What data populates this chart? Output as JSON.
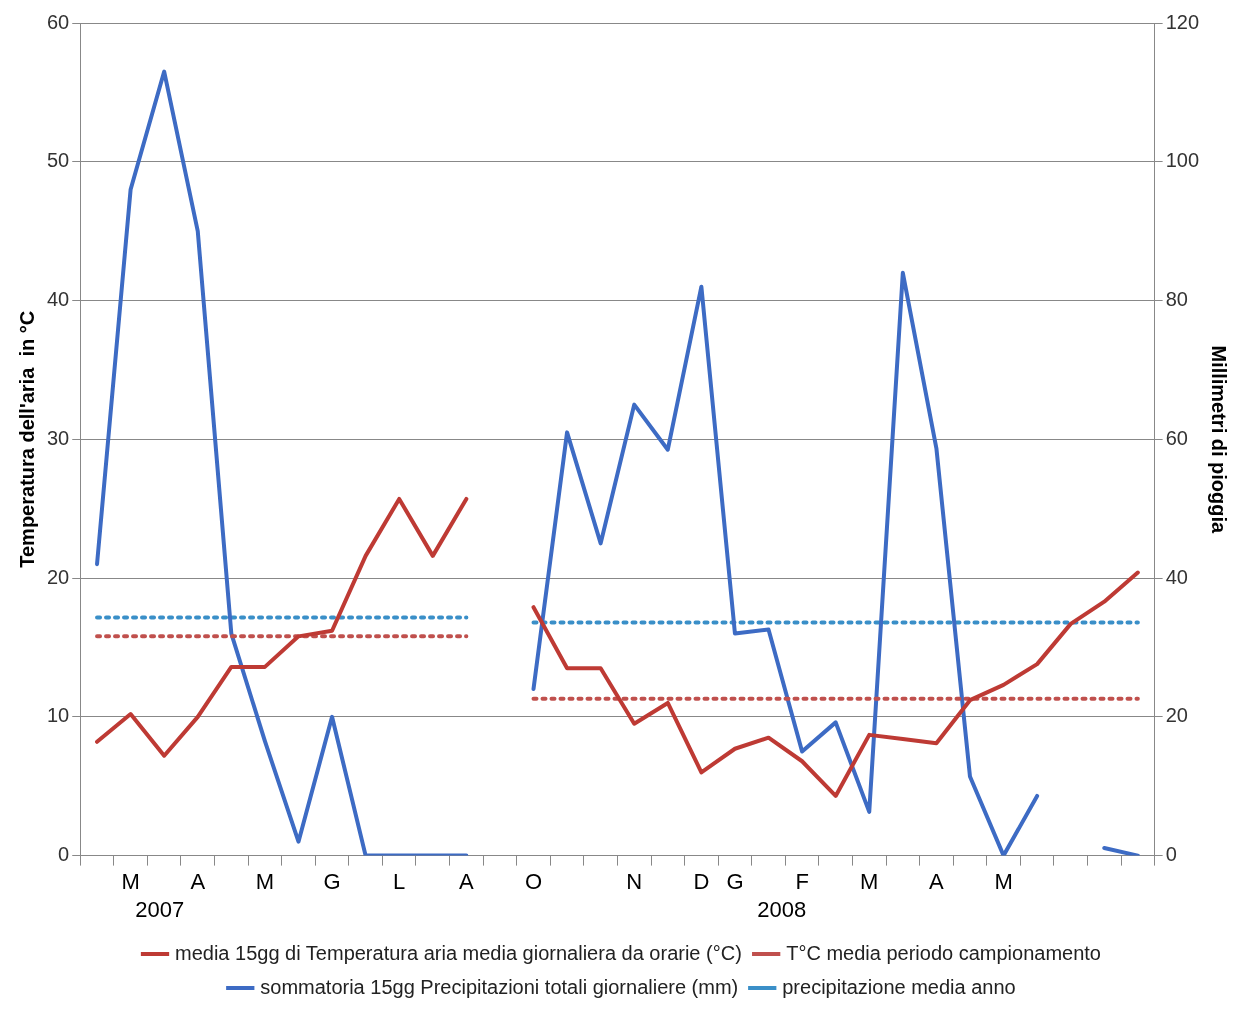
{
  "chart_data": {
    "type": "line",
    "ylabel": "Temperatura dell'aria  in °C",
    "y2label": "Millimetri di pioggia",
    "categories": [
      null,
      "M",
      null,
      "A",
      null,
      "M",
      null,
      "G",
      null,
      "L",
      null,
      "A",
      null,
      "O",
      null,
      null,
      "N",
      null,
      "D",
      "G",
      null,
      "F",
      null,
      "M",
      null,
      "A",
      null,
      "M",
      null,
      null,
      null,
      null
    ],
    "series": [
      {
        "name": "media 15gg di Temperatura aria media giornaliera da orarie (°C)",
        "color": "#be3a34",
        "values": [
          8.2,
          10.2,
          7.2,
          10,
          13.6,
          13.6,
          15.8,
          16.2,
          21.6,
          25.7,
          21.6,
          25.7,
          null,
          17.9,
          13.5,
          13.5,
          9.5,
          11,
          6,
          7.7,
          8.5,
          6.8,
          4.3,
          8.7,
          8.4,
          8.1,
          11.2,
          12.3,
          13.8,
          16.7,
          18.3,
          20.4
        ]
      },
      {
        "name": "T°C media periodo campionamento",
        "color": "#c0504d",
        "line_style": "dotted",
        "values": [
          15.8,
          15.8,
          15.8,
          15.8,
          15.8,
          15.8,
          15.8,
          15.8,
          15.8,
          15.8,
          15.8,
          15.8,
          null,
          11.3,
          11.3,
          11.3,
          11.3,
          11.3,
          11.3,
          11.3,
          11.3,
          11.3,
          11.3,
          11.3,
          11.3,
          11.3,
          11.3,
          11.3,
          11.3,
          11.3,
          11.3,
          11.3
        ]
      },
      {
        "name": "sommatoria 15gg Precipitazioni totali giornaliere (mm)",
        "color": "#3d6bc4",
        "axis": "y2",
        "values": [
          42,
          96,
          113,
          90,
          32,
          16.5,
          2,
          20,
          0,
          0,
          0,
          0,
          null,
          24,
          61,
          45,
          65,
          58.5,
          82,
          32,
          32.6,
          15,
          19.2,
          6.3,
          84,
          58.7,
          11.4,
          0,
          8.6,
          null,
          1.1,
          0
        ]
      },
      {
        "name": "precipitazione media anno",
        "color": "#3a8fc8",
        "axis": "y2",
        "line_style": "dotted",
        "values": [
          34.3,
          34.3,
          34.3,
          34.3,
          34.3,
          34.3,
          34.3,
          34.3,
          34.3,
          34.3,
          34.3,
          34.3,
          null,
          33.6,
          33.6,
          33.6,
          33.6,
          33.6,
          33.6,
          33.6,
          33.6,
          33.6,
          33.6,
          33.6,
          33.6,
          33.6,
          33.6,
          33.6,
          33.6,
          33.6,
          33.6,
          33.6
        ]
      }
    ],
    "ylim": [
      0,
      60
    ],
    "yticks": [
      0,
      10,
      20,
      30,
      40,
      50,
      60
    ],
    "y2lim": [
      0,
      120
    ],
    "y2ticks": [
      0,
      20,
      40,
      60,
      80,
      100,
      120
    ],
    "grid": "y",
    "legend": "bottom",
    "marker": "none",
    "annotations": [
      "2007",
      "2008"
    ]
  }
}
